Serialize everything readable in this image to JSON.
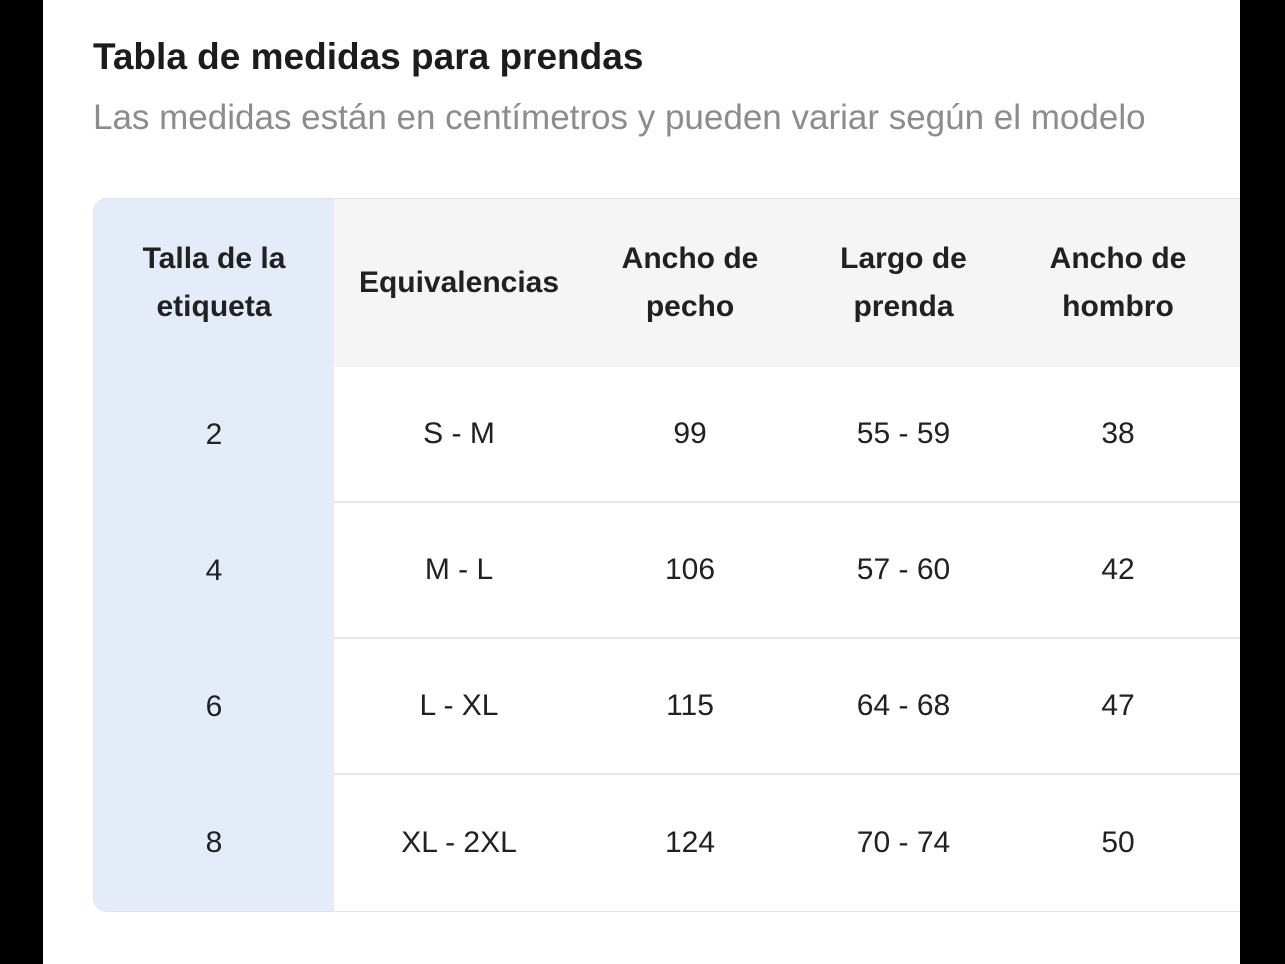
{
  "modal": {
    "title": "Tabla de medidas para prendas",
    "subtitle": "Las medidas están en centímetros y pueden variar según el modelo"
  },
  "table": {
    "columns": [
      {
        "key": "talla-etiqueta",
        "label": "Talla de la\netiqueta"
      },
      {
        "key": "equivalencias",
        "label": "Equivalencias"
      },
      {
        "key": "ancho-pecho",
        "label": "Ancho de\npecho"
      },
      {
        "key": "largo-prenda",
        "label": "Largo de\nprenda"
      },
      {
        "key": "ancho-hombro",
        "label": "Ancho de\nhombro"
      }
    ],
    "rows": [
      {
        "talla-etiqueta": "2",
        "equivalencias": "S - M",
        "ancho-pecho": "99",
        "largo-prenda": "55 - 59",
        "ancho-hombro": "38"
      },
      {
        "talla-etiqueta": "4",
        "equivalencias": "M - L",
        "ancho-pecho": "106",
        "largo-prenda": "57 - 60",
        "ancho-hombro": "42"
      },
      {
        "talla-etiqueta": "6",
        "equivalencias": "L - XL",
        "ancho-pecho": "115",
        "largo-prenda": "64 - 68",
        "ancho-hombro": "47"
      },
      {
        "talla-etiqueta": "8",
        "equivalencias": "XL - 2XL",
        "ancho-pecho": "124",
        "largo-prenda": "70 - 74",
        "ancho-hombro": "50"
      }
    ]
  },
  "colors": {
    "backdrop": "#000000",
    "sheet_bg": "#ffffff",
    "accent_column_bg": "#e4ebf9",
    "header_bg": "#f5f5f5",
    "divider": "#e6e6e6",
    "table_border": "#e3e3e3",
    "title_text": "#1c1c1c",
    "subtitle_text": "#8c8c8c",
    "cell_text": "#212121"
  }
}
